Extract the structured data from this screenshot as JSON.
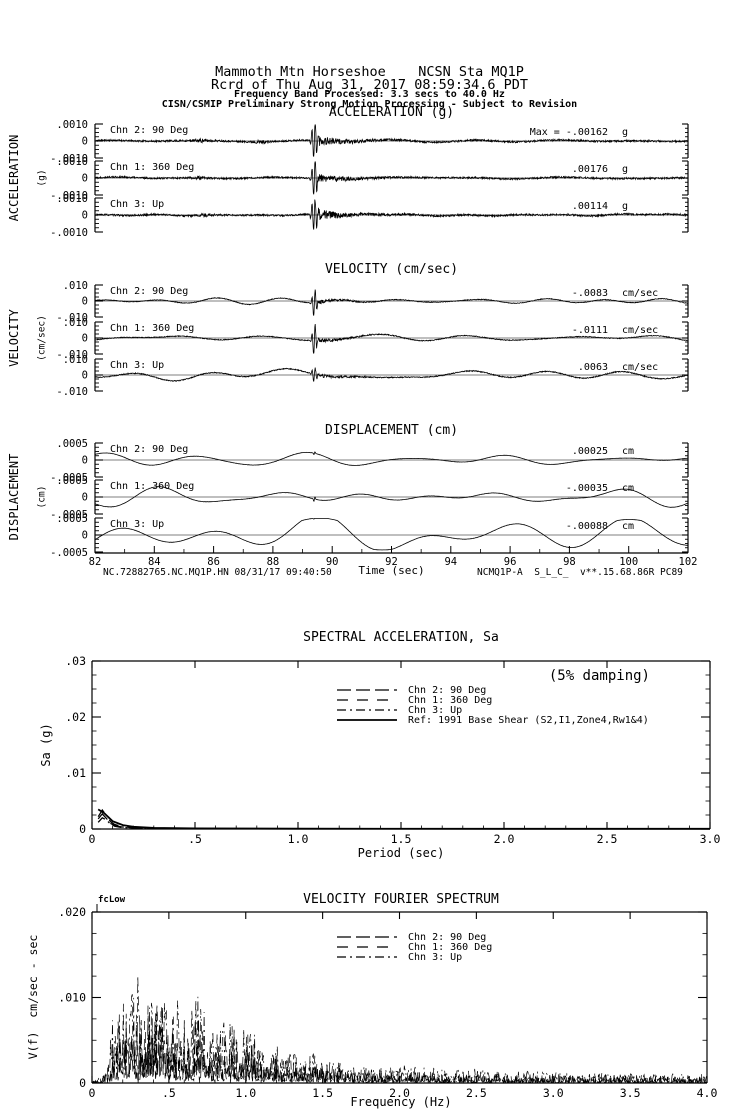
{
  "header": {
    "station_line": "Mammoth Mtn Horseshoe    NCSN Sta MQ1P",
    "record_line": "Rcrd of Thu Aug 31, 2017 08:59:34.6 PDT",
    "band_line": "Frequency Band Processed: 3.3 secs to 40.0 Hz",
    "processing_line": "CISN/CSMIP Preliminary Strong Motion Processing - Subject to Revision"
  },
  "footer": {
    "record_id": "NC.72882765.NC.MQ1P.HN 08/31/17 09:40:50",
    "time_axis_label": "Time (sec)",
    "processing_id": "NCMQ1P-A  S_L_C_  v**.15.68.86R PC89"
  },
  "colors": {
    "ink": "#000000",
    "paper": "#ffffff"
  },
  "chart_data": [
    {
      "id": "acceleration-time-series",
      "type": "line",
      "title": "ACCELERATION (g)",
      "ylabel": "ACCELERATION",
      "yunit": "(g)",
      "xlim": [
        82,
        102
      ],
      "trace_ylim": [
        -0.001,
        0.001
      ],
      "ytick_labels": [
        ".0010",
        "0",
        "-.0010"
      ],
      "channels": [
        {
          "label": "Chn 2: 90 Deg",
          "peak_prefix": "Max =",
          "peak": "-.00162",
          "unit": "g",
          "peak_value": -0.00162,
          "peak_time_sec": 89.4,
          "sig": {
            "seed": 11,
            "noise": 0.05,
            "wander": 0.05,
            "wfreq": 0.5,
            "spike_amp": 1.2,
            "spike_t": 89.4,
            "spike_w": 0.1,
            "coda": 0.3,
            "bursts": [
              {
                "t": 85.6,
                "a": 0.07,
                "w": 0.3
              },
              {
                "t": 87.6,
                "a": 0.06,
                "w": 0.25
              }
            ]
          }
        },
        {
          "label": "Chn 1: 360 Deg",
          "peak_prefix": "",
          "peak": ".00176",
          "unit": "g",
          "peak_value": 0.00176,
          "peak_time_sec": 89.4,
          "sig": {
            "seed": 22,
            "noise": 0.05,
            "wander": 0.05,
            "wfreq": 0.5,
            "spike_amp": 1.25,
            "spike_t": 89.4,
            "spike_w": 0.09,
            "coda": 0.26,
            "bursts": [
              {
                "t": 85.5,
                "a": 0.06,
                "w": 0.3
              }
            ]
          }
        },
        {
          "label": "Chn 3: Up",
          "peak_prefix": "",
          "peak": ".00114",
          "unit": "g",
          "peak_value": 0.00114,
          "peak_time_sec": 89.4,
          "sig": {
            "seed": 33,
            "noise": 0.05,
            "wander": 0.05,
            "wfreq": 0.5,
            "spike_amp": 1.0,
            "spike_t": 89.4,
            "spike_w": 0.11,
            "coda": 0.32,
            "bursts": [
              {
                "t": 85.7,
                "a": 0.05,
                "w": 0.3
              }
            ]
          }
        }
      ]
    },
    {
      "id": "velocity-time-series",
      "type": "line",
      "title": "VELOCITY (cm/sec)",
      "ylabel": "VELOCITY",
      "yunit": "(cm/sec)",
      "xlim": [
        82,
        102
      ],
      "trace_ylim": [
        -0.01,
        0.01
      ],
      "ytick_labels": [
        ".010",
        "0",
        "-.010"
      ],
      "channels": [
        {
          "label": "Chn 2: 90 Deg",
          "peak_prefix": "",
          "peak": "-.0083",
          "unit": "cm/sec",
          "peak_value": -0.0083,
          "peak_time_sec": 89.4,
          "sig": {
            "seed": 44,
            "noise": 0.02,
            "wander": 0.14,
            "wfreq": 0.45,
            "spike_amp": 1.0,
            "spike_t": 89.4,
            "spike_w": 0.08,
            "coda": 0.12,
            "bursts": []
          }
        },
        {
          "label": "Chn 1: 360 Deg",
          "peak_prefix": "",
          "peak": "-.0111",
          "unit": "cm/sec",
          "peak_value": -0.0111,
          "peak_time_sec": 89.4,
          "sig": {
            "seed": 55,
            "noise": 0.025,
            "wander": 0.18,
            "wfreq": 0.45,
            "spike_amp": 1.15,
            "spike_t": 89.4,
            "spike_w": 0.08,
            "coda": 0.12,
            "bursts": []
          }
        },
        {
          "label": "Chn 3: Up",
          "peak_prefix": "",
          "peak": ".0063",
          "unit": "cm/sec",
          "peak_value": 0.0063,
          "peak_time_sec": 89.4,
          "sig": {
            "seed": 66,
            "noise": 0.03,
            "wander": 0.3,
            "wfreq": 0.35,
            "spike_amp": 0.55,
            "spike_t": 89.4,
            "spike_w": 0.08,
            "coda": 0.1,
            "bursts": []
          }
        }
      ]
    },
    {
      "id": "displacement-time-series",
      "type": "line",
      "title": "DISPLACEMENT (cm)",
      "ylabel": "DISPLACEMENT",
      "yunit": "(cm)",
      "xlabel": "Time (sec)",
      "xlim": [
        82,
        102
      ],
      "trace_ylim": [
        -0.0005,
        0.0005
      ],
      "ytick_labels": [
        ".0005",
        "0",
        "-.0005"
      ],
      "xtick_labels": [
        "82",
        "84",
        "86",
        "88",
        "90",
        "92",
        "94",
        "96",
        "98",
        "100",
        "102"
      ],
      "channels": [
        {
          "label": "Chn 2: 90 Deg",
          "peak_prefix": "",
          "peak": ".00025",
          "unit": "cm",
          "peak_value": 0.00025,
          "peak_time_sec": 89.4,
          "sig": {
            "seed": 77,
            "noise": 0.006,
            "wander": 0.3,
            "wfreq": 0.4,
            "spike_amp": 0.15,
            "spike_t": 89.4,
            "spike_w": 0.03,
            "coda": 0,
            "bursts": []
          }
        },
        {
          "label": "Chn 1: 360 Deg",
          "peak_prefix": "",
          "peak": "-.00035",
          "unit": "cm",
          "peak_value": -0.00035,
          "peak_time_sec": 89.4,
          "sig": {
            "seed": 88,
            "noise": 0.006,
            "wander": 0.42,
            "wfreq": 0.4,
            "spike_amp": 0.22,
            "spike_t": 89.4,
            "spike_w": 0.035,
            "coda": 0,
            "bursts": []
          }
        },
        {
          "label": "Chn 3: Up",
          "peak_prefix": "",
          "peak": "-.00088",
          "unit": "cm",
          "peak_value": -0.00088,
          "peak_time_sec": 89.4,
          "sig": {
            "seed": 99,
            "noise": 0.005,
            "wander": 0.9,
            "wfreq": 0.28,
            "spike_amp": 0.25,
            "spike_t": 89.4,
            "spike_w": 0.03,
            "coda": 0,
            "bursts": []
          }
        }
      ]
    },
    {
      "id": "spectral-acceleration",
      "type": "line",
      "title": "SPECTRAL ACCELERATION, Sa",
      "xlabel": "Period (sec)",
      "ylabel": "Sa (g)",
      "annotation": "(5% damping)",
      "xlim": [
        0,
        3
      ],
      "ylim": [
        0,
        0.03
      ],
      "xtick_values": [
        0,
        0.5,
        1,
        1.5,
        2,
        2.5,
        3
      ],
      "xtick_labels": [
        "0",
        ".5",
        "1.0",
        "1.5",
        "2.0",
        "2.5",
        "3.0"
      ],
      "ytick_values": [
        0,
        0.01,
        0.02,
        0.03
      ],
      "ytick_labels": [
        "0",
        ".01",
        ".02",
        ".03"
      ],
      "legend": [
        {
          "label": "Chn 2: 90 Deg",
          "style": "chn2"
        },
        {
          "label": "Chn 1: 360 Deg",
          "style": "chn1"
        },
        {
          "label": "Chn 3: Up",
          "style": "chn3"
        },
        {
          "label": "Ref: 1991 Base Shear (S2,I1,Zone4,Rw1&4)",
          "style": "ref"
        }
      ],
      "series": [
        {
          "name": "Chn 2: 90 Deg",
          "style": "chn2",
          "x": [
            0.03,
            0.05,
            0.07,
            0.09,
            0.11,
            0.14,
            0.18,
            0.22,
            0.28,
            0.35,
            0.5,
            0.75,
            1.0,
            1.5,
            2.0,
            2.5,
            3.0
          ],
          "y": [
            0.0018,
            0.0027,
            0.0019,
            0.001,
            0.0006,
            0.0004,
            0.00025,
            0.00015,
            0.0001,
            7e-05,
            5e-05,
            4e-05,
            3e-05,
            2e-05,
            2e-05,
            2e-05,
            2e-05
          ]
        },
        {
          "name": "Chn 1: 360 Deg",
          "style": "chn1",
          "x": [
            0.03,
            0.05,
            0.07,
            0.09,
            0.11,
            0.14,
            0.18,
            0.22,
            0.28,
            0.35,
            0.5,
            0.75,
            1.0,
            1.5,
            2.0,
            2.5,
            3.0
          ],
          "y": [
            0.0022,
            0.0034,
            0.0024,
            0.0013,
            0.0008,
            0.0005,
            0.0003,
            0.0002,
            0.00012,
            8e-05,
            6e-05,
            4e-05,
            3e-05,
            3e-05,
            2e-05,
            2e-05,
            2e-05
          ]
        },
        {
          "name": "Chn 3: Up",
          "style": "chn3",
          "x": [
            0.03,
            0.05,
            0.07,
            0.09,
            0.11,
            0.14,
            0.18,
            0.22,
            0.28,
            0.35,
            0.5,
            0.75,
            1.0,
            1.5,
            2.0,
            2.5,
            3.0
          ],
          "y": [
            0.0012,
            0.002,
            0.0016,
            0.0009,
            0.0005,
            0.0003,
            0.0002,
            0.00012,
            8e-05,
            6e-05,
            4e-05,
            3e-05,
            2e-05,
            2e-05,
            2e-05,
            2e-05,
            2e-05
          ]
        },
        {
          "name": "Ref: 1991 Base Shear (S2,I1,Zone4,Rw1&4)",
          "style": "ref",
          "x": [
            0.03,
            0.06,
            0.1,
            0.15,
            0.2,
            0.3,
            0.5,
            1.0,
            2.0,
            3.0
          ],
          "y": [
            0.0035,
            0.0028,
            0.0014,
            0.0007,
            0.0004,
            0.0002,
            0.0001,
            6e-05,
            4e-05,
            3e-05
          ]
        }
      ]
    },
    {
      "id": "velocity-fourier-spectrum",
      "type": "line",
      "title": "VELOCITY FOURIER SPECTRUM",
      "xlabel": "Frequency (Hz)",
      "ylabel": "V(f)  cm/sec - sec",
      "corner_marker": "fcLow",
      "xlim": [
        0,
        4
      ],
      "ylim": [
        0,
        0.02
      ],
      "xtick_values": [
        0,
        0.5,
        1,
        1.5,
        2,
        2.5,
        3,
        3.5,
        4
      ],
      "xtick_labels": [
        "0",
        ".5",
        "1.0",
        "1.5",
        "2.0",
        "2.5",
        "3.0",
        "3.5",
        "4.0"
      ],
      "ytick_values": [
        0,
        0.01,
        0.02
      ],
      "ytick_labels": [
        "0",
        ".010",
        ".020"
      ],
      "legend": [
        {
          "label": "Chn 2: 90 Deg",
          "style": "chn2"
        },
        {
          "label": "Chn 1: 360 Deg",
          "style": "chn1"
        },
        {
          "label": "Chn 3: Up",
          "style": "chn3"
        }
      ],
      "envelope": {
        "x": [
          0,
          0.08,
          0.12,
          0.18,
          0.22,
          0.28,
          0.32,
          0.38,
          0.45,
          0.5,
          0.55,
          0.62,
          0.7,
          0.78,
          0.88,
          1.0,
          1.1,
          1.2,
          1.35,
          1.5,
          1.7,
          2.0,
          2.3,
          2.6,
          3.0,
          3.5,
          4.0
        ],
        "y": [
          0.0002,
          0.0015,
          0.006,
          0.011,
          0.01,
          0.012,
          0.011,
          0.01,
          0.0138,
          0.009,
          0.01,
          0.008,
          0.0105,
          0.006,
          0.0075,
          0.0078,
          0.005,
          0.0045,
          0.003,
          0.0035,
          0.002,
          0.0022,
          0.0015,
          0.0016,
          0.0013,
          0.0012,
          0.001
        ]
      },
      "series": [
        {
          "name": "Chn 2: 90 Deg",
          "style": "chn2",
          "scale": 0.5,
          "seed": 7
        },
        {
          "name": "Chn 1: 360 Deg",
          "style": "chn1",
          "scale": 0.75,
          "seed": 8
        },
        {
          "name": "Chn 3: Up",
          "style": "chn3",
          "scale": 1.0,
          "seed": 9
        }
      ]
    }
  ]
}
